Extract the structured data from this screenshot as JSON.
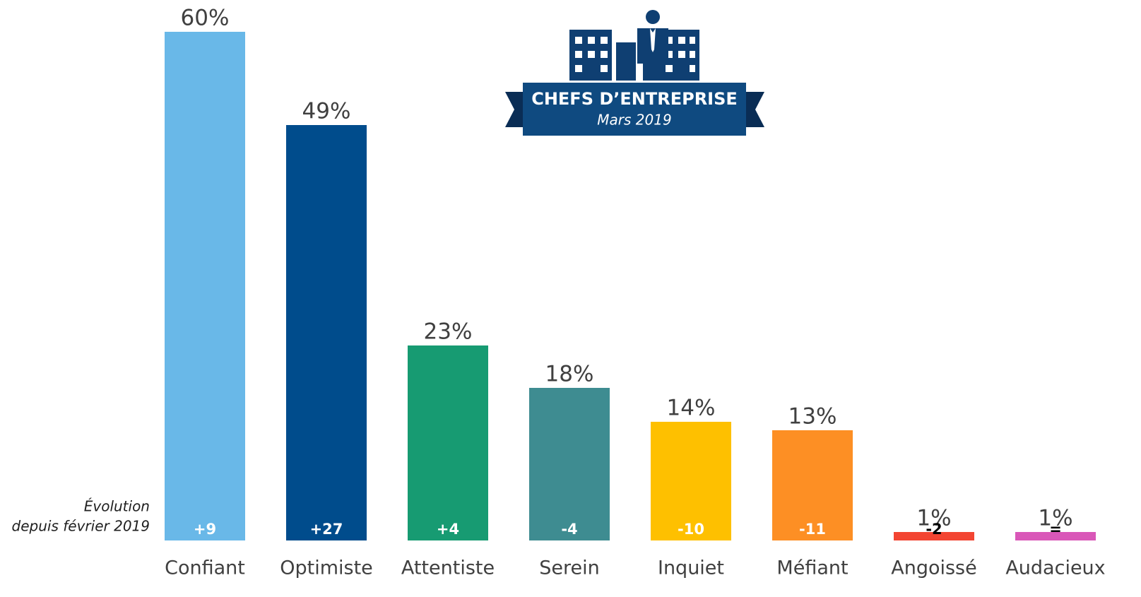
{
  "chart_data": {
    "type": "bar",
    "badge_title": "CHEFS D’ENTREPRISE",
    "badge_subtitle": "Mars 2019",
    "note": [
      "Évolution",
      "depuis février 2019"
    ],
    "categories": [
      "Confiant",
      "Optimiste",
      "Attentiste",
      "Serein",
      "Inquiet",
      "Méfiant",
      "Angoissé",
      "Audacieux"
    ],
    "values": [
      60,
      49,
      23,
      18,
      14,
      13,
      1,
      1
    ],
    "value_labels": [
      "60%",
      "49%",
      "23%",
      "18%",
      "14%",
      "13%",
      "1%",
      "1%"
    ],
    "colors": [
      "#69b8e8",
      "#004c8c",
      "#179b72",
      "#3e8c91",
      "#fec000",
      "#fd8f24",
      "#f34532",
      "#d957b8"
    ],
    "changes": [
      "+9",
      "+27",
      "+4",
      "-4",
      "-10",
      "-11",
      "-2",
      "="
    ],
    "change_colors": [
      "#ffffff",
      "#ffffff",
      "#ffffff",
      "#ffffff",
      "#ffffff",
      "#ffffff",
      "#000000",
      "#000000"
    ],
    "ylim": [
      0,
      60
    ]
  }
}
